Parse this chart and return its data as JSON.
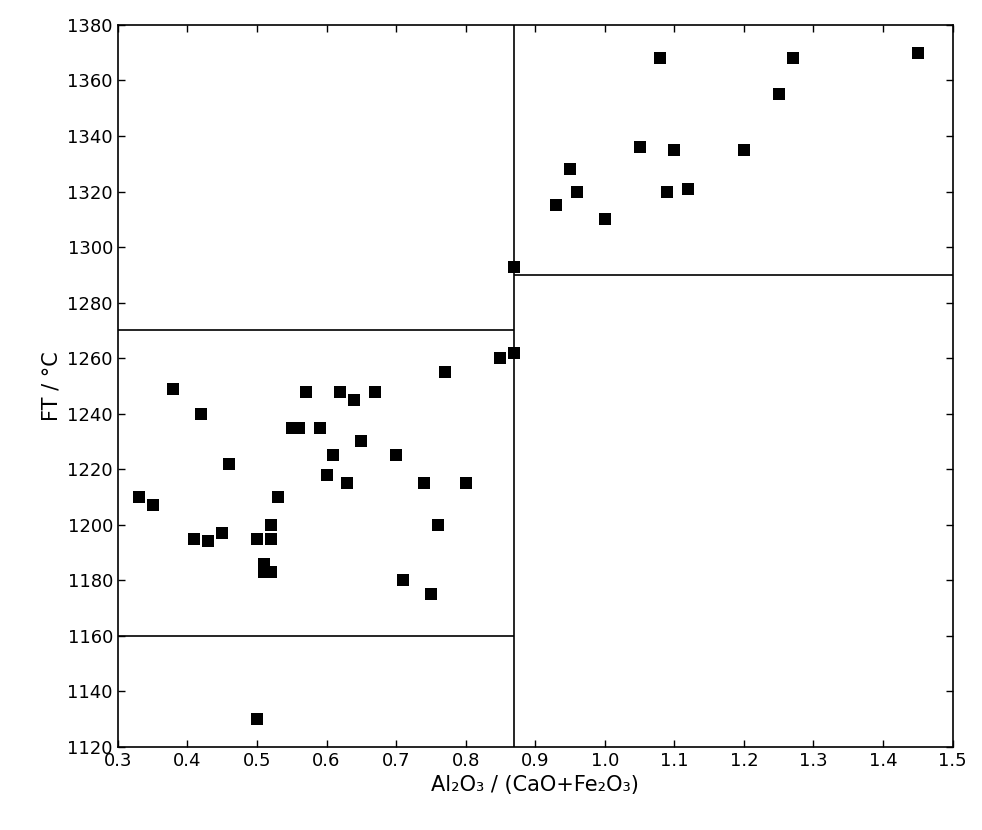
{
  "xlabel": "Al₂O₃ / (CaO+Fe₂O₃)",
  "ylabel": "FT / °C",
  "xlim": [
    0.3,
    1.5
  ],
  "ylim": [
    1120,
    1380
  ],
  "xticks": [
    0.3,
    0.4,
    0.5,
    0.6,
    0.7,
    0.8,
    0.9,
    1.0,
    1.1,
    1.2,
    1.3,
    1.4,
    1.5
  ],
  "yticks": [
    1120,
    1140,
    1160,
    1180,
    1200,
    1220,
    1240,
    1260,
    1280,
    1300,
    1320,
    1340,
    1360,
    1380
  ],
  "hline1": 1160,
  "hline2": 1270,
  "hline3": 1290,
  "vline1": 0.87,
  "scatter_points": [
    [
      0.33,
      1210
    ],
    [
      0.35,
      1207
    ],
    [
      0.38,
      1249
    ],
    [
      0.41,
      1195
    ],
    [
      0.42,
      1240
    ],
    [
      0.43,
      1194
    ],
    [
      0.45,
      1197
    ],
    [
      0.46,
      1222
    ],
    [
      0.5,
      1130
    ],
    [
      0.5,
      1195
    ],
    [
      0.51,
      1183
    ],
    [
      0.51,
      1186
    ],
    [
      0.52,
      1183
    ],
    [
      0.52,
      1195
    ],
    [
      0.52,
      1200
    ],
    [
      0.53,
      1210
    ],
    [
      0.55,
      1235
    ],
    [
      0.56,
      1235
    ],
    [
      0.57,
      1248
    ],
    [
      0.59,
      1235
    ],
    [
      0.6,
      1218
    ],
    [
      0.61,
      1225
    ],
    [
      0.62,
      1248
    ],
    [
      0.63,
      1215
    ],
    [
      0.64,
      1245
    ],
    [
      0.65,
      1230
    ],
    [
      0.67,
      1248
    ],
    [
      0.7,
      1225
    ],
    [
      0.71,
      1180
    ],
    [
      0.74,
      1215
    ],
    [
      0.75,
      1175
    ],
    [
      0.76,
      1200
    ],
    [
      0.77,
      1255
    ],
    [
      0.8,
      1215
    ],
    [
      0.85,
      1260
    ],
    [
      0.87,
      1262
    ],
    [
      0.87,
      1293
    ],
    [
      0.93,
      1315
    ],
    [
      0.95,
      1328
    ],
    [
      0.96,
      1320
    ],
    [
      1.0,
      1310
    ],
    [
      1.05,
      1336
    ],
    [
      1.08,
      1368
    ],
    [
      1.09,
      1320
    ],
    [
      1.1,
      1335
    ],
    [
      1.12,
      1321
    ],
    [
      1.2,
      1335
    ],
    [
      1.25,
      1355
    ],
    [
      1.27,
      1368
    ],
    [
      1.45,
      1370
    ]
  ],
  "marker": "s",
  "marker_color": "black",
  "marker_size": 72,
  "line_color": "black",
  "line_width": 1.2,
  "background_color": "#ffffff",
  "tick_fontsize": 13,
  "label_fontsize": 15
}
